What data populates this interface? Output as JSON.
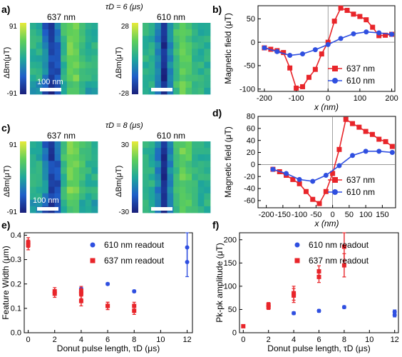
{
  "colors": {
    "red": "#e8252a",
    "blue": "#2f4fe0",
    "axis": "#000000"
  },
  "panel_letters": [
    "a)",
    "b)",
    "c)",
    "d)",
    "e)",
    "f)"
  ],
  "tau_labels": {
    "a": "τD = 6 (μs)",
    "c": "τD = 8 (μs)"
  },
  "maps": {
    "a": {
      "left_title": "637 nm",
      "right_title": "610 nm",
      "scale_label": "100 nm",
      "cbar_left": {
        "max": "91",
        "min": "-91"
      },
      "cbar_right": {
        "max": "28",
        "min": "-28"
      },
      "cbar_label": "ΔBm(μT)"
    },
    "c": {
      "left_title": "637 nm",
      "right_title": "610 nm",
      "scale_label": "100 nm",
      "cbar_left": {
        "max": "91",
        "min": "-91"
      },
      "cbar_right": {
        "max": "30",
        "min": "-30"
      },
      "cbar_label": "ΔBm(μT)"
    }
  },
  "chart_data": [
    {
      "id": "b",
      "type": "line",
      "xlabel": "x (nm)",
      "ylabel": "Magnetic field (μT)",
      "xlim": [
        -220,
        210
      ],
      "ylim": [
        -105,
        78
      ],
      "xticks": [
        -200,
        -100,
        0,
        100,
        200
      ],
      "yticks": [
        -100,
        -50,
        0,
        50
      ],
      "legend": "bottom-right",
      "series": [
        {
          "name": "637 nm",
          "color": "red",
          "marker": "square",
          "x": [
            -200,
            -180,
            -160,
            -140,
            -120,
            -100,
            -80,
            -60,
            -40,
            -20,
            0,
            20,
            40,
            60,
            80,
            100,
            120,
            140,
            160,
            180,
            200
          ],
          "y": [
            -12,
            -15,
            -18,
            -22,
            -55,
            -98,
            -95,
            -75,
            -58,
            -25,
            0,
            45,
            73,
            68,
            60,
            55,
            48,
            32,
            14,
            15,
            17
          ]
        },
        {
          "name": "610 nm",
          "color": "blue",
          "marker": "circle",
          "x": [
            -200,
            -160,
            -120,
            -80,
            -40,
            0,
            40,
            80,
            120,
            160,
            200
          ],
          "y": [
            -12,
            -20,
            -28,
            -25,
            -16,
            -5,
            8,
            18,
            22,
            20,
            17
          ]
        }
      ]
    },
    {
      "id": "d",
      "type": "line",
      "xlabel": "x (nm)",
      "ylabel": "Magnetic field (μT)",
      "xlim": [
        -225,
        190
      ],
      "ylim": [
        -72,
        80
      ],
      "xticks": [
        -200,
        -150,
        -100,
        -50,
        0,
        50,
        100,
        150
      ],
      "yticks": [
        -60,
        -40,
        -20,
        0,
        20,
        40,
        60,
        80
      ],
      "legend": "bottom-right",
      "series": [
        {
          "name": "637 nm",
          "color": "red",
          "marker": "square",
          "x": [
            -180,
            -160,
            -140,
            -120,
            -100,
            -80,
            -60,
            -40,
            -20,
            0,
            20,
            40,
            60,
            80,
            100,
            120,
            140,
            160,
            180
          ],
          "y": [
            -8,
            -12,
            -18,
            -25,
            -32,
            -45,
            -58,
            -65,
            -45,
            -15,
            25,
            75,
            68,
            62,
            55,
            50,
            42,
            38,
            30
          ]
        },
        {
          "name": "610 nm",
          "color": "blue",
          "marker": "circle",
          "x": [
            -180,
            -140,
            -100,
            -60,
            -20,
            20,
            60,
            100,
            140,
            180
          ],
          "y": [
            -8,
            -15,
            -25,
            -28,
            -18,
            -2,
            15,
            22,
            22,
            20
          ]
        }
      ]
    },
    {
      "id": "e",
      "type": "scatter",
      "xlabel": "Donut pulse length, τD (μs)",
      "ylabel": "Feature Width (μm)",
      "xlim": [
        -0.3,
        12.4
      ],
      "ylim": [
        0,
        0.41
      ],
      "xticks": [
        0,
        2,
        4,
        6,
        8,
        10,
        12
      ],
      "yticks": [
        0.0,
        0.1,
        0.2,
        0.3,
        0.4
      ],
      "legend": "top-right",
      "series": [
        {
          "name": "610 nm readout",
          "color": "blue",
          "marker": "circle",
          "x": [
            4,
            6,
            8,
            12,
            12
          ],
          "y": [
            0.18,
            0.2,
            0.17,
            0.35,
            0.29
          ],
          "err": [
            0.005,
            0.005,
            0.005,
            0.06,
            0.06
          ]
        },
        {
          "name": "637 nm readout",
          "color": "red",
          "marker": "square",
          "x": [
            0,
            0,
            2,
            2,
            4,
            4,
            4,
            6,
            6,
            8,
            8
          ],
          "y": [
            0.37,
            0.36,
            0.17,
            0.16,
            0.17,
            0.16,
            0.13,
            0.11,
            0.11,
            0.11,
            0.09
          ],
          "err": [
            0.02,
            0.02,
            0.015,
            0.015,
            0.02,
            0.02,
            0.02,
            0.015,
            0.015,
            0.015,
            0.015
          ]
        }
      ]
    },
    {
      "id": "f",
      "type": "scatter",
      "xlabel": "Donut pulse length, τD (μs)",
      "ylabel": "Pk-pk amplitude (μT)",
      "xlim": [
        -0.3,
        12.3
      ],
      "ylim": [
        0,
        215
      ],
      "xticks": [
        0,
        2,
        4,
        6,
        8,
        10,
        12
      ],
      "yticks": [
        0,
        50,
        100,
        150,
        200
      ],
      "legend": "top-right",
      "series": [
        {
          "name": "610 nm readout",
          "color": "blue",
          "marker": "circle",
          "x": [
            4,
            6,
            8,
            12,
            12
          ],
          "y": [
            42,
            47,
            55,
            45,
            38
          ],
          "err": [
            3,
            3,
            3,
            4,
            4
          ]
        },
        {
          "name": "637 nm readout",
          "color": "red",
          "marker": "square",
          "x": [
            0,
            2,
            2,
            4,
            4,
            6,
            6,
            8,
            8
          ],
          "y": [
            14,
            60,
            55,
            85,
            80,
            132,
            120,
            185,
            145
          ],
          "err": [
            3,
            5,
            5,
            15,
            15,
            12,
            12,
            30,
            25
          ]
        }
      ]
    }
  ]
}
